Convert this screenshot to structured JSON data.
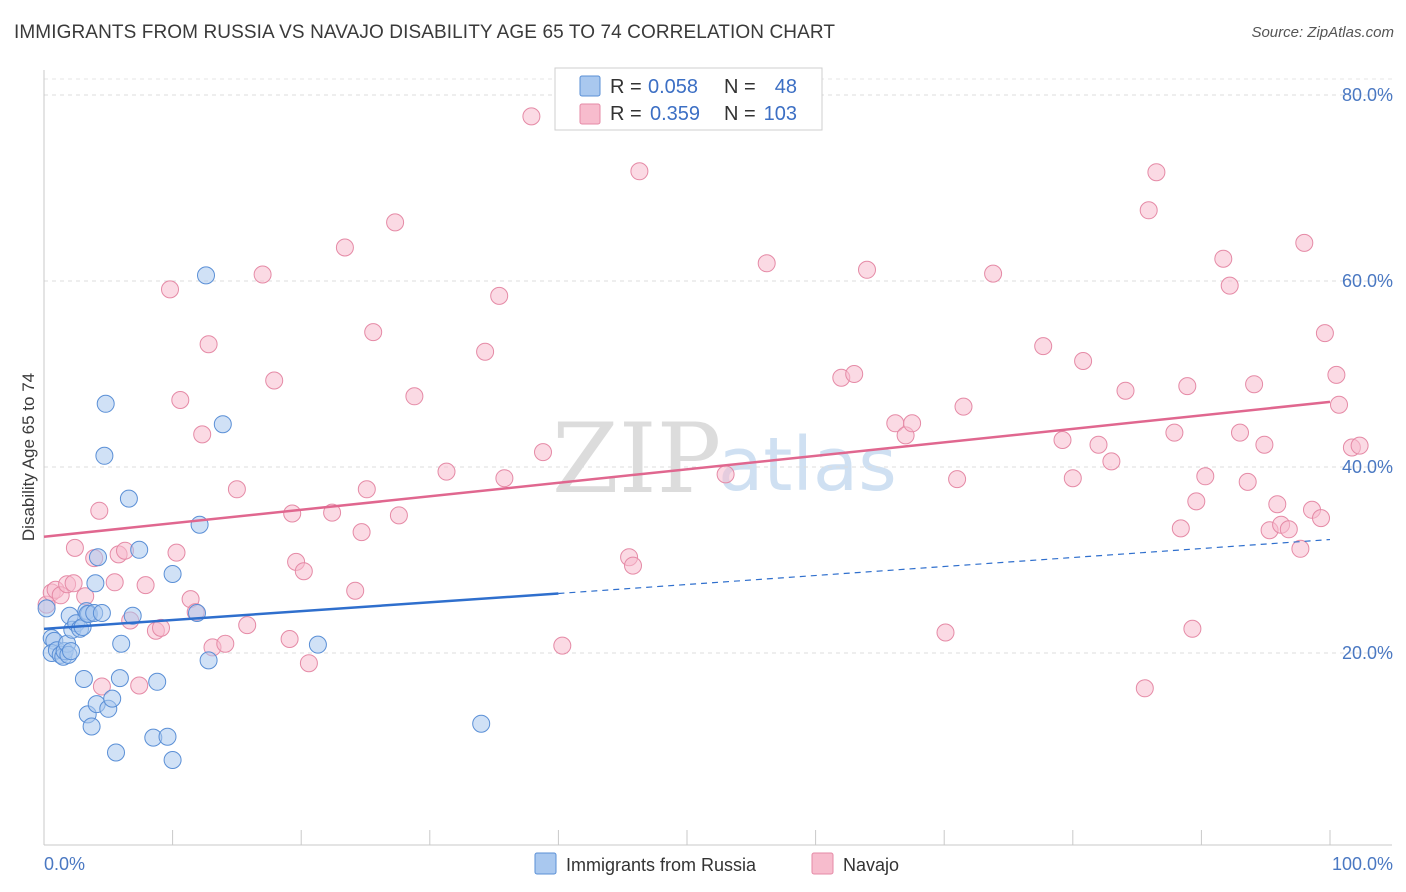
{
  "title": "IMMIGRANTS FROM RUSSIA VS NAVAJO DISABILITY AGE 65 TO 74 CORRELATION CHART",
  "source": "Source: ZipAtlas.com",
  "watermark": {
    "part1": "ZIP",
    "part2": "atlas"
  },
  "colors": {
    "blue_fill": "#a9c8ef",
    "blue_stroke": "#5a8fd6",
    "blue_line": "#2f6fcd",
    "pink_fill": "#f7bccd",
    "pink_stroke": "#e58aa6",
    "pink_line": "#e0678f",
    "axis_text": "#4a78c2",
    "grid": "#dddddd"
  },
  "stats": {
    "rows": [
      {
        "r_label": "R = ",
        "r_value": "0.058",
        "n_label": "N = ",
        "n_value": "48"
      },
      {
        "r_label": "R = ",
        "r_value": "0.359",
        "n_label": "N = ",
        "n_value": "103"
      }
    ]
  },
  "chart_data": {
    "type": "scatter",
    "title": "IMMIGRANTS FROM RUSSIA VS NAVAJO DISABILITY AGE 65 TO 74 CORRELATION CHART",
    "xlabel": "",
    "ylabel": "Disability Age 65 to 74",
    "xlim": [
      0,
      100
    ],
    "ylim": [
      0,
      82
    ],
    "x_tick_labels": [
      "0.0%",
      "100.0%"
    ],
    "y_ticks": [
      20,
      40,
      60,
      80
    ],
    "y_tick_labels": [
      "20.0%",
      "40.0%",
      "60.0%",
      "80.0%"
    ],
    "legend": [
      "Immigrants from Russia",
      "Navajo"
    ],
    "series": [
      {
        "name": "Immigrants from Russia",
        "color": "#a9c8ef",
        "trend": {
          "x": [
            0,
            40
          ],
          "y": [
            22.6,
            26.4
          ],
          "dashed_to": [
            100,
            32.2
          ]
        },
        "points": [
          [
            0.2,
            24.8
          ],
          [
            0.6,
            21.6
          ],
          [
            0.8,
            21.3
          ],
          [
            0.6,
            20.0
          ],
          [
            1.0,
            20.3
          ],
          [
            1.3,
            19.8
          ],
          [
            1.5,
            19.6
          ],
          [
            1.6,
            20.2
          ],
          [
            1.8,
            21.0
          ],
          [
            1.9,
            19.8
          ],
          [
            2.1,
            20.2
          ],
          [
            2.0,
            24.0
          ],
          [
            2.2,
            22.5
          ],
          [
            2.5,
            23.2
          ],
          [
            2.8,
            22.6
          ],
          [
            3.0,
            22.8
          ],
          [
            3.3,
            24.5
          ],
          [
            3.5,
            24.2
          ],
          [
            3.4,
            24.2
          ],
          [
            3.9,
            24.3
          ],
          [
            4.0,
            27.5
          ],
          [
            4.2,
            30.3
          ],
          [
            4.5,
            24.3
          ],
          [
            4.7,
            41.2
          ],
          [
            4.8,
            46.8
          ],
          [
            3.1,
            17.2
          ],
          [
            3.4,
            13.4
          ],
          [
            3.7,
            12.1
          ],
          [
            4.1,
            14.5
          ],
          [
            5.0,
            14.0
          ],
          [
            5.3,
            15.1
          ],
          [
            5.6,
            9.3
          ],
          [
            5.9,
            17.3
          ],
          [
            6.0,
            21.0
          ],
          [
            6.6,
            36.6
          ],
          [
            6.9,
            24.0
          ],
          [
            7.4,
            31.1
          ],
          [
            8.5,
            10.9
          ],
          [
            8.8,
            16.9
          ],
          [
            9.6,
            11.0
          ],
          [
            10.0,
            8.5
          ],
          [
            10.0,
            28.5
          ],
          [
            11.9,
            24.3
          ],
          [
            12.1,
            33.8
          ],
          [
            12.8,
            19.2
          ],
          [
            12.6,
            60.6
          ],
          [
            13.9,
            44.6
          ],
          [
            21.3,
            20.9
          ],
          [
            34.0,
            12.4
          ]
        ]
      },
      {
        "name": "Navajo",
        "color": "#f7bccd",
        "trend": {
          "x": [
            0,
            100
          ],
          "y": [
            32.5,
            47.0
          ]
        },
        "points": [
          [
            0.2,
            25.2
          ],
          [
            0.6,
            26.5
          ],
          [
            0.9,
            26.8
          ],
          [
            1.3,
            26.2
          ],
          [
            1.8,
            27.4
          ],
          [
            2.3,
            27.5
          ],
          [
            2.4,
            31.3
          ],
          [
            3.2,
            26.1
          ],
          [
            3.9,
            30.2
          ],
          [
            4.3,
            35.3
          ],
          [
            4.5,
            16.4
          ],
          [
            5.5,
            27.6
          ],
          [
            5.8,
            30.6
          ],
          [
            6.3,
            31.0
          ],
          [
            6.7,
            23.5
          ],
          [
            7.4,
            16.5
          ],
          [
            7.9,
            27.3
          ],
          [
            8.7,
            22.4
          ],
          [
            9.1,
            22.7
          ],
          [
            9.8,
            59.1
          ],
          [
            10.3,
            30.8
          ],
          [
            10.6,
            47.2
          ],
          [
            11.4,
            25.8
          ],
          [
            11.8,
            24.4
          ],
          [
            12.3,
            43.5
          ],
          [
            12.8,
            53.2
          ],
          [
            13.1,
            20.6
          ],
          [
            14.1,
            21.0
          ],
          [
            15.0,
            37.6
          ],
          [
            15.8,
            23.0
          ],
          [
            17.0,
            60.7
          ],
          [
            17.9,
            49.3
          ],
          [
            19.1,
            21.5
          ],
          [
            19.3,
            35.0
          ],
          [
            19.6,
            29.8
          ],
          [
            20.2,
            28.8
          ],
          [
            20.6,
            18.9
          ],
          [
            22.4,
            35.1
          ],
          [
            23.4,
            63.6
          ],
          [
            24.2,
            26.7
          ],
          [
            24.7,
            33.0
          ],
          [
            25.1,
            37.6
          ],
          [
            25.6,
            54.5
          ],
          [
            27.3,
            66.3
          ],
          [
            27.6,
            34.8
          ],
          [
            28.8,
            47.6
          ],
          [
            31.3,
            39.5
          ],
          [
            34.3,
            52.4
          ],
          [
            35.4,
            58.4
          ],
          [
            35.8,
            38.8
          ],
          [
            37.9,
            77.7
          ],
          [
            38.8,
            41.6
          ],
          [
            40.3,
            20.8
          ],
          [
            45.5,
            30.3
          ],
          [
            45.8,
            29.4
          ],
          [
            46.3,
            71.8
          ],
          [
            53.0,
            39.2
          ],
          [
            56.2,
            61.9
          ],
          [
            62.0,
            49.6
          ],
          [
            63.0,
            50.0
          ],
          [
            64.0,
            61.2
          ],
          [
            66.2,
            44.7
          ],
          [
            67.0,
            43.4
          ],
          [
            67.5,
            44.7
          ],
          [
            70.1,
            22.2
          ],
          [
            71.0,
            38.7
          ],
          [
            71.5,
            46.5
          ],
          [
            73.8,
            60.8
          ],
          [
            77.7,
            53.0
          ],
          [
            79.2,
            42.9
          ],
          [
            80.0,
            38.8
          ],
          [
            80.8,
            51.4
          ],
          [
            82.0,
            42.4
          ],
          [
            83.0,
            40.6
          ],
          [
            84.1,
            48.2
          ],
          [
            85.6,
            16.2
          ],
          [
            85.9,
            67.6
          ],
          [
            86.5,
            71.7
          ],
          [
            87.9,
            43.7
          ],
          [
            88.4,
            33.4
          ],
          [
            88.9,
            48.7
          ],
          [
            89.3,
            22.6
          ],
          [
            89.6,
            36.3
          ],
          [
            90.3,
            39.0
          ],
          [
            91.7,
            62.4
          ],
          [
            92.2,
            59.5
          ],
          [
            93.0,
            43.7
          ],
          [
            93.6,
            38.4
          ],
          [
            94.1,
            48.9
          ],
          [
            94.9,
            42.4
          ],
          [
            95.3,
            33.2
          ],
          [
            95.9,
            36.0
          ],
          [
            96.2,
            33.8
          ],
          [
            96.8,
            33.3
          ],
          [
            97.7,
            31.2
          ],
          [
            98.0,
            64.1
          ],
          [
            98.6,
            35.4
          ],
          [
            99.3,
            34.5
          ],
          [
            99.6,
            54.4
          ],
          [
            100.5,
            49.9
          ],
          [
            100.7,
            46.7
          ],
          [
            101.7,
            42.1
          ],
          [
            102.3,
            42.3
          ]
        ]
      }
    ]
  }
}
